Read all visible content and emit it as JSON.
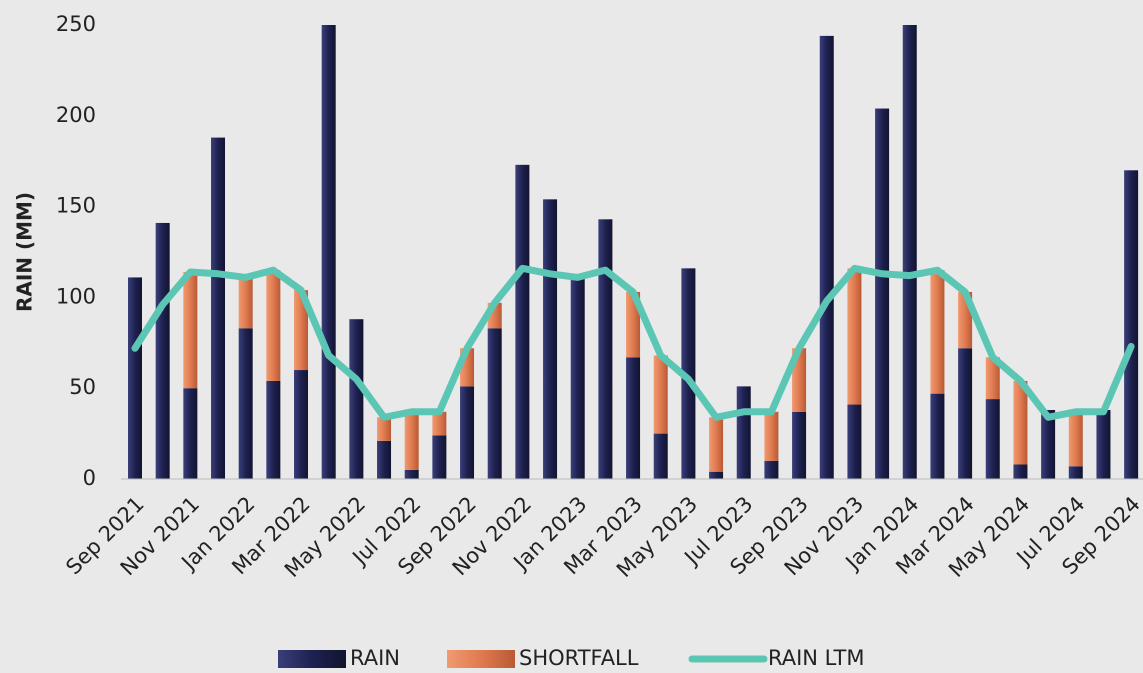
{
  "chart_data": {
    "type": "bar",
    "stacked": true,
    "y_label": "RAIN (MM)",
    "categories": [
      "Sep 2021",
      null,
      "Nov 2021",
      null,
      "Jan 2022",
      null,
      "Mar 2022",
      null,
      "May 2022",
      null,
      "Jul 2022",
      null,
      "Sep 2022",
      null,
      "Nov 2022",
      null,
      "Jan 2023",
      null,
      "Mar 2023",
      null,
      "May 2023",
      null,
      "Jul 2023",
      null,
      "Sep 2023",
      null,
      "Nov 2023",
      null,
      "Jan 2024",
      null,
      "Mar 2024",
      null,
      "May 2024",
      null,
      "Jul 2024",
      null,
      "Sep 2024"
    ],
    "series": [
      {
        "name": "RAIN",
        "color": "#1e2150",
        "values": [
          111,
          141,
          50,
          188,
          83,
          54,
          60,
          250,
          88,
          21,
          5,
          24,
          51,
          83,
          173,
          154,
          112,
          143,
          67,
          25,
          116,
          4,
          51,
          10,
          37,
          244,
          41,
          204,
          250,
          47,
          72,
          44,
          8,
          38,
          7,
          38,
          170
        ]
      },
      {
        "name": "SHORTFALL",
        "color": "#e07a50",
        "values": [
          0,
          0,
          64,
          0,
          28,
          61,
          44,
          0,
          0,
          13,
          32,
          13,
          21,
          14,
          0,
          0,
          0,
          0,
          36,
          43,
          0,
          30,
          0,
          27,
          35,
          0,
          75,
          0,
          0,
          68,
          31,
          23,
          46,
          0,
          30,
          0,
          0
        ]
      },
      {
        "name": "RAIN LTM",
        "type": "line",
        "color": "#5cc6b4",
        "values": [
          72,
          96,
          114,
          113,
          111,
          115,
          104,
          68,
          55,
          34,
          37,
          37,
          72,
          97,
          116,
          113,
          111,
          115,
          103,
          68,
          55,
          34,
          37,
          37,
          72,
          98,
          116,
          113,
          112,
          115,
          103,
          67,
          54,
          34,
          37,
          37,
          73
        ]
      }
    ],
    "ylim": [
      0,
      250
    ],
    "yticks": [
      0,
      50,
      100,
      150,
      200,
      250
    ],
    "grid": false,
    "legend": "bottom"
  }
}
